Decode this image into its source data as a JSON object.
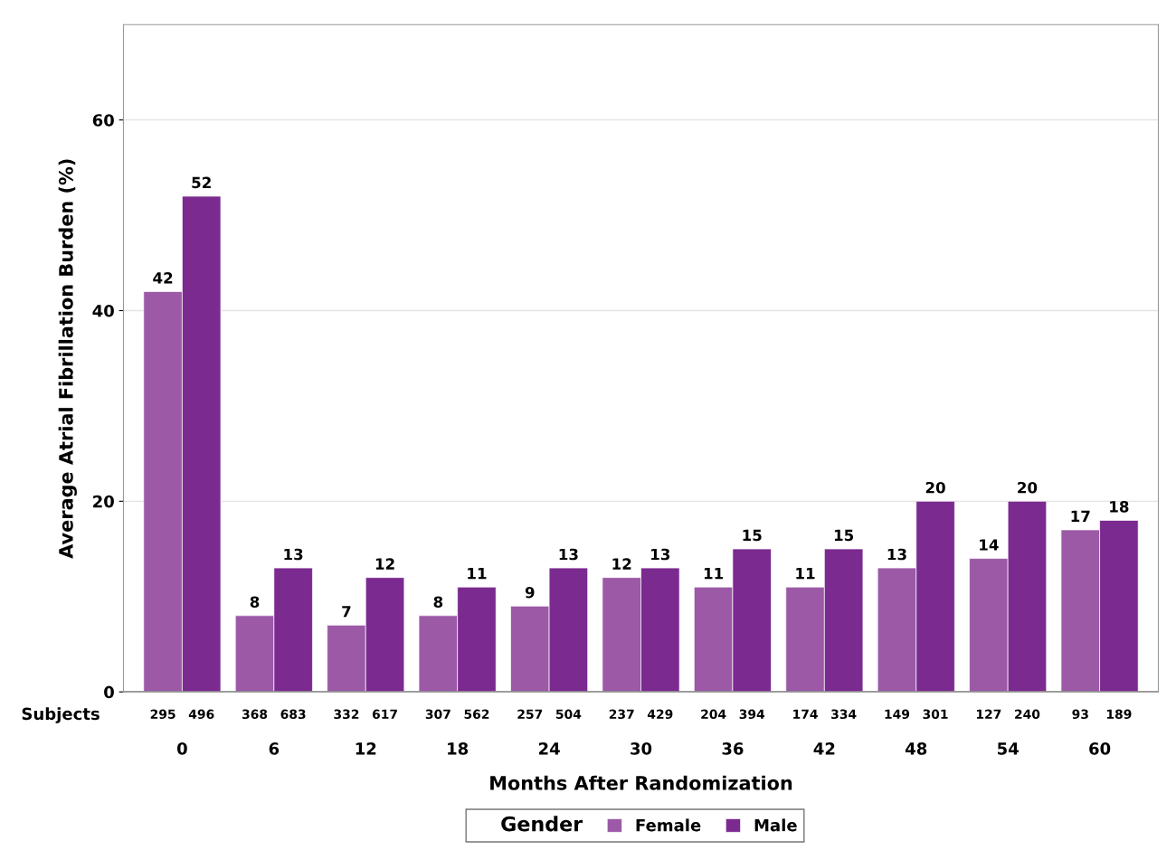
{
  "chart_data": {
    "type": "bar",
    "xlabel": "Months After Randomization",
    "ylabel": "Average Atrial Fibrillation Burden (%)",
    "legend_title": "Gender",
    "categories": [
      "0",
      "6",
      "12",
      "18",
      "24",
      "30",
      "36",
      "42",
      "48",
      "54",
      "60"
    ],
    "series": [
      {
        "name": "Female",
        "color": "#9b59a6",
        "values": [
          42,
          8,
          7,
          8,
          9,
          12,
          11,
          11,
          13,
          14,
          17
        ]
      },
      {
        "name": "Male",
        "color": "#7b2a8f",
        "values": [
          52,
          13,
          12,
          11,
          13,
          13,
          15,
          15,
          20,
          20,
          18
        ]
      }
    ],
    "ylim": [
      0,
      70
    ],
    "yticks": [
      0,
      20,
      40,
      60
    ],
    "grid": "y",
    "legend": "bottom",
    "data_labels": true,
    "annotations": [
      "Subjects",
      "295",
      "496",
      "368",
      "683",
      "332",
      "617",
      "307",
      "562",
      "257",
      "504",
      "237",
      "429",
      "204",
      "394",
      "174",
      "334",
      "149",
      "301",
      "127",
      "240",
      "93",
      "189"
    ]
  }
}
